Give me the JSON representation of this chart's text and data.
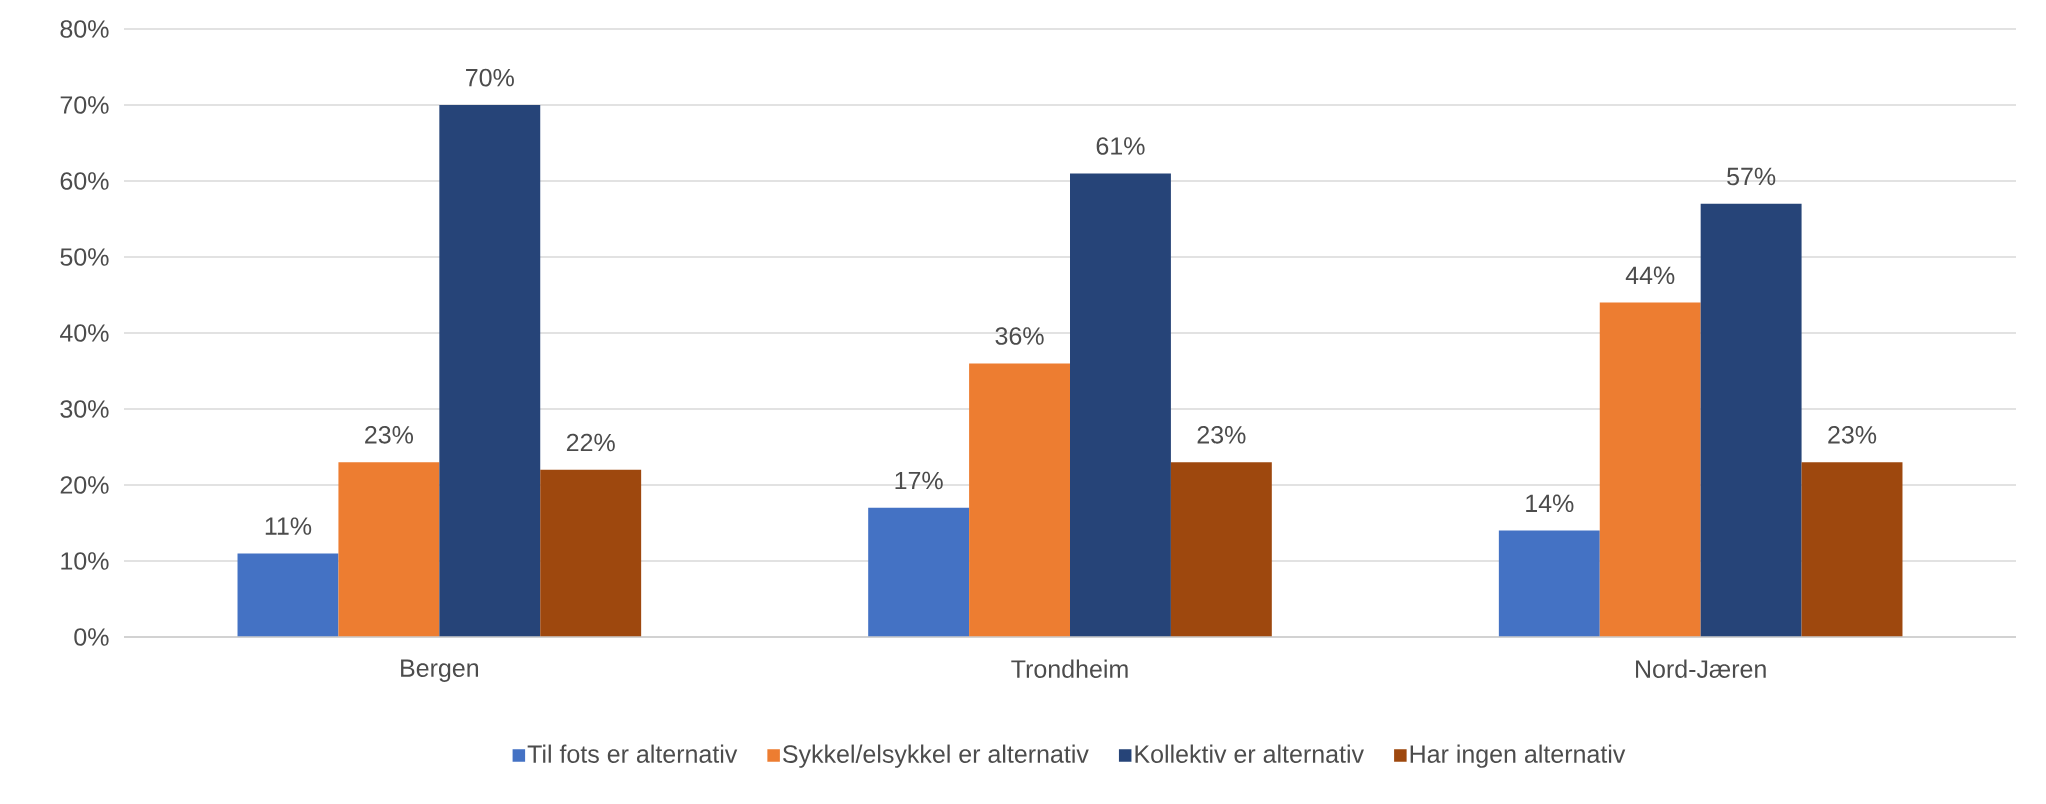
{
  "chart_data": {
    "type": "bar",
    "categories": [
      "Bergen",
      "Trondheim",
      "Nord-Jæren"
    ],
    "series": [
      {
        "name": "Til fots er alternativ",
        "color": "#4472c4",
        "values": [
          11,
          17,
          14
        ],
        "value_labels": [
          "11%",
          "17%",
          "14%"
        ]
      },
      {
        "name": "Sykkel/elsykkel er alternativ",
        "color": "#ed7d31",
        "values": [
          23,
          36,
          44
        ],
        "value_labels": [
          "23%",
          "36%",
          "44%"
        ]
      },
      {
        "name": "Kollektiv er alternativ",
        "color": "#264478",
        "values": [
          70,
          61,
          57
        ],
        "value_labels": [
          "70%",
          "61%",
          "57%"
        ]
      },
      {
        "name": "Har ingen alternativ",
        "color": "#9e480e",
        "values": [
          22,
          23,
          23
        ],
        "value_labels": [
          "22%",
          "23%",
          "23%"
        ]
      }
    ],
    "ylim": [
      0,
      80
    ],
    "yticks": [
      {
        "value": 0,
        "label": "0%"
      },
      {
        "value": 10,
        "label": "10%"
      },
      {
        "value": 20,
        "label": "20%"
      },
      {
        "value": 30,
        "label": "30%"
      },
      {
        "value": 40,
        "label": "40%"
      },
      {
        "value": 50,
        "label": "50%"
      },
      {
        "value": 60,
        "label": "60%"
      },
      {
        "value": 70,
        "label": "70%"
      },
      {
        "value": 80,
        "label": "80%"
      }
    ],
    "grid": "y",
    "legend": "bottom"
  }
}
